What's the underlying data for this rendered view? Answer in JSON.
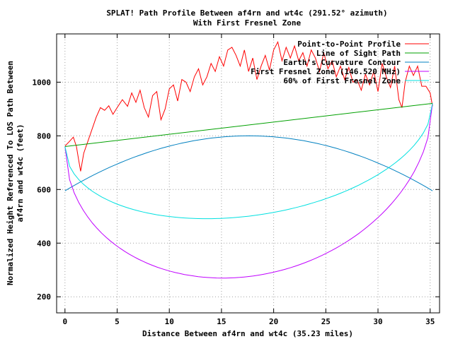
{
  "chart_data": {
    "type": "line",
    "title": "SPLAT! Path Profile Between af4rn and wt4c (291.52° azimuth)",
    "subtitle": "With First Fresnel Zone",
    "xlabel": "Distance Between af4rn and wt4c (35.23 miles)",
    "ylabel_lines": [
      "Normalized Height Referenced To LOS Path Between",
      "af4rn and wt4c (feet)"
    ],
    "xlim": [
      -0.8,
      35.9
    ],
    "ylim": [
      140,
      1180
    ],
    "x_ticks": [
      0,
      5,
      10,
      15,
      20,
      25,
      30,
      35
    ],
    "y_ticks": [
      200,
      400,
      600,
      800,
      1000
    ],
    "grid": true,
    "legend_position": "top-right",
    "series": [
      {
        "name": "Point-to-Point Profile",
        "color": "#ff0000",
        "x": [
          0,
          0.4,
          0.8,
          1.1,
          1.3,
          1.5,
          1.8,
          2.2,
          2.6,
          3.0,
          3.4,
          3.8,
          4.2,
          4.6,
          5.0,
          5.5,
          6.0,
          6.4,
          6.8,
          7.2,
          7.6,
          8.0,
          8.4,
          8.8,
          9.2,
          9.6,
          10.0,
          10.4,
          10.8,
          11.2,
          11.6,
          12.0,
          12.4,
          12.8,
          13.2,
          13.6,
          14.0,
          14.4,
          14.8,
          15.2,
          15.6,
          16.0,
          16.4,
          16.8,
          17.2,
          17.6,
          18.0,
          18.4,
          18.8,
          19.2,
          19.6,
          20.0,
          20.4,
          20.8,
          21.2,
          21.6,
          22.0,
          22.4,
          22.8,
          23.2,
          23.6,
          24.0,
          24.4,
          24.8,
          25.2,
          25.6,
          26.0,
          26.4,
          26.8,
          27.2,
          27.6,
          28.0,
          28.4,
          28.8,
          29.2,
          29.6,
          30.0,
          30.4,
          30.8,
          31.2,
          31.6,
          32.0,
          32.3,
          32.6,
          33.0,
          33.4,
          33.8,
          34.2,
          34.6,
          35.0,
          35.23
        ],
        "values": [
          762,
          778,
          795,
          760,
          712,
          668,
          735,
          780,
          825,
          870,
          905,
          895,
          912,
          880,
          905,
          935,
          910,
          960,
          925,
          970,
          905,
          870,
          950,
          965,
          860,
          900,
          975,
          990,
          930,
          1010,
          1000,
          965,
          1020,
          1050,
          990,
          1020,
          1070,
          1040,
          1095,
          1060,
          1120,
          1130,
          1100,
          1060,
          1120,
          1040,
          1090,
          1010,
          1060,
          1100,
          1045,
          1120,
          1150,
          1080,
          1130,
          1090,
          1135,
          1080,
          1110,
          1060,
          1120,
          1090,
          1040,
          1110,
          1050,
          1080,
          1020,
          1060,
          1010,
          1055,
          1000,
          1010,
          970,
          1030,
          990,
          1040,
          965,
          1070,
          1020,
          980,
          1060,
          935,
          905,
          1000,
          1060,
          1025,
          1060,
          985,
          985,
          960,
          910
        ]
      },
      {
        "name": "Line of Sight Path",
        "color": "#00a000",
        "x": [
          0,
          35.23
        ],
        "values": [
          760,
          921
        ]
      },
      {
        "name": "Earth's Curvature Contour",
        "color": "#0080c0",
        "x": [
          0,
          35.23
        ],
        "values": [
          595,
          595
        ],
        "bulge_feet": 205
      },
      {
        "name": "First Fresnel Zone (146.520 MHz)",
        "color": "#c000ff",
        "x": [
          0,
          35.23
        ],
        "values": [
          760,
          921
        ],
        "zone_depth_feet": 565
      },
      {
        "name": "60% of First Fresnel Zone",
        "color": "#00e0e0",
        "x": [
          0,
          35.23
        ],
        "values": [
          760,
          921
        ],
        "zone_depth_feet": 340
      }
    ]
  }
}
